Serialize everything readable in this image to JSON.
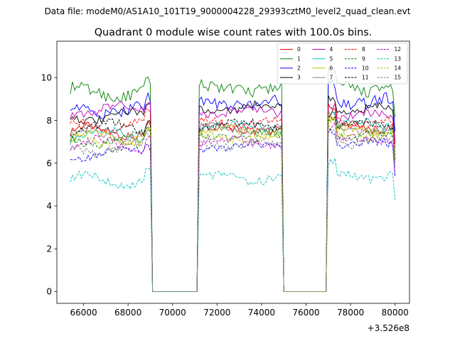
{
  "figure": {
    "suptitle": "Data file: modeM0/AS1A10_101T19_9000004228_29393cztM0_level2_quad_clean.evt"
  },
  "chart_data": {
    "type": "line",
    "title": "Quadrant 0 module wise count rates with 100.0s bins.",
    "xlabel": "",
    "ylabel": "",
    "x_offset_label": "+3.526e8",
    "xlim": [
      64800,
      80650
    ],
    "ylim": [
      -0.55,
      11.7
    ],
    "xticks": [
      66000,
      68000,
      70000,
      72000,
      74000,
      76000,
      78000,
      80000
    ],
    "xtick_labels": [
      "66000",
      "68000",
      "70000",
      "72000",
      "74000",
      "76000",
      "78000",
      "80000"
    ],
    "yticks": [
      0,
      2,
      4,
      6,
      8,
      10
    ],
    "ytick_labels": [
      "0",
      "2",
      "4",
      "6",
      "8",
      "10"
    ],
    "grid": false,
    "legend": {
      "placement": "top-right",
      "columns": 4
    },
    "segments": [
      {
        "start": 65400,
        "end": 69000
      },
      {
        "start": 71200,
        "end": 74900
      },
      {
        "start": 77000,
        "end": 80000
      }
    ],
    "gap_value": 0,
    "series": [
      {
        "name": "0",
        "color": "#ff0000",
        "dash": "solid",
        "levels": [
          7.5,
          7.6,
          7.7
        ]
      },
      {
        "name": "1",
        "color": "#008000",
        "dash": "solid",
        "levels": [
          9.3,
          9.5,
          9.5
        ]
      },
      {
        "name": "2",
        "color": "#0000ff",
        "dash": "solid",
        "levels": [
          8.5,
          8.8,
          8.9
        ]
      },
      {
        "name": "3",
        "color": "#000000",
        "dash": "solid",
        "levels": [
          8.2,
          8.6,
          8.5
        ]
      },
      {
        "name": "4",
        "color": "#bf00bf",
        "dash": "solid",
        "levels": [
          8.5,
          8.4,
          8.2
        ]
      },
      {
        "name": "5",
        "color": "#00bfbf",
        "dash": "solid",
        "levels": [
          7.3,
          7.7,
          7.8
        ]
      },
      {
        "name": "6",
        "color": "#bfbf00",
        "dash": "solid",
        "levels": [
          7.2,
          7.5,
          7.5
        ]
      },
      {
        "name": "7",
        "color": "#808080",
        "dash": "solid",
        "levels": [
          7.4,
          7.6,
          7.6
        ]
      },
      {
        "name": "8",
        "color": "#ff0000",
        "dash": "dashed",
        "levels": [
          7.8,
          7.9,
          7.9
        ]
      },
      {
        "name": "9",
        "color": "#008000",
        "dash": "dashed",
        "levels": [
          7.1,
          7.3,
          7.3
        ]
      },
      {
        "name": "10",
        "color": "#0000ff",
        "dash": "dashed",
        "levels": [
          6.5,
          6.8,
          6.9
        ]
      },
      {
        "name": "11",
        "color": "#000000",
        "dash": "dashed",
        "levels": [
          7.7,
          7.8,
          7.8
        ]
      },
      {
        "name": "12",
        "color": "#bf00bf",
        "dash": "dashed",
        "levels": [
          6.9,
          7.0,
          7.1
        ]
      },
      {
        "name": "13",
        "color": "#00bfbf",
        "dash": "dashed",
        "levels": [
          5.2,
          5.3,
          5.4
        ]
      },
      {
        "name": "14",
        "color": "#bfbf00",
        "dash": "dashed",
        "levels": [
          7.0,
          7.2,
          7.3
        ]
      },
      {
        "name": "15",
        "color": "#808080",
        "dash": "dashed",
        "levels": [
          6.7,
          6.9,
          7.0
        ]
      }
    ]
  }
}
